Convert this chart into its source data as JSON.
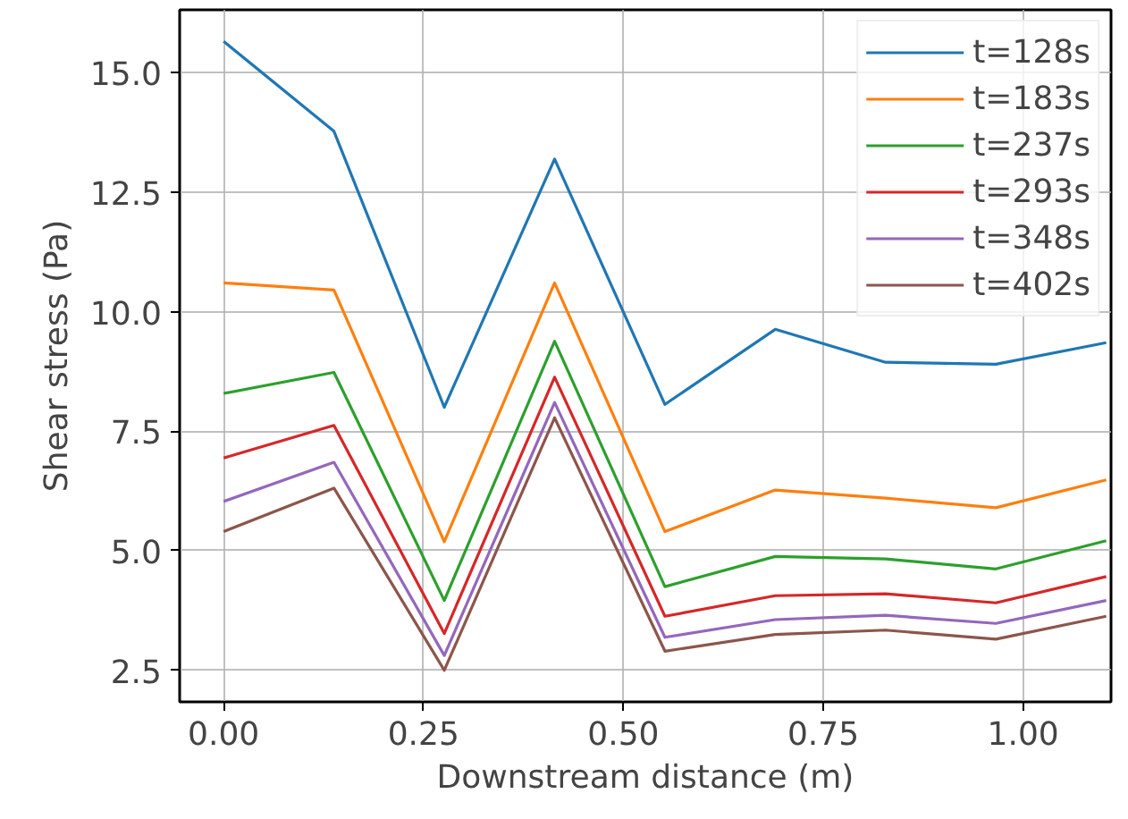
{
  "chart_data": {
    "type": "line",
    "xlabel": "Downstream distance (m)",
    "ylabel": "Shear stress (Pa)",
    "x": [
      0,
      0.138,
      0.276,
      0.414,
      0.552,
      0.69,
      0.828,
      0.966,
      1.104
    ],
    "series": [
      {
        "name": "t=128s",
        "color": "#1f77b4",
        "values": [
          15.65,
          13.77,
          8.0,
          13.19,
          8.06,
          9.63,
          8.94,
          8.9,
          9.35
        ]
      },
      {
        "name": "t=183s",
        "color": "#ff7f0e",
        "values": [
          10.6,
          10.45,
          5.19,
          10.6,
          5.4,
          6.27,
          6.1,
          5.9,
          6.48
        ]
      },
      {
        "name": "t=237s",
        "color": "#2ca02c",
        "values": [
          8.29,
          8.73,
          3.96,
          9.38,
          4.25,
          4.88,
          4.83,
          4.62,
          5.21
        ]
      },
      {
        "name": "t=293s",
        "color": "#d62728",
        "values": [
          6.94,
          7.62,
          3.27,
          8.63,
          3.63,
          4.06,
          4.1,
          3.91,
          4.46
        ]
      },
      {
        "name": "t=348s",
        "color": "#9467bd",
        "values": [
          6.03,
          6.85,
          2.81,
          8.1,
          3.19,
          3.56,
          3.65,
          3.48,
          3.96
        ]
      },
      {
        "name": "t=402s",
        "color": "#8c564b",
        "values": [
          5.4,
          6.31,
          2.5,
          7.78,
          2.9,
          3.25,
          3.34,
          3.15,
          3.63
        ]
      }
    ],
    "xlim": [
      -0.055,
      1.11
    ],
    "ylim": [
      1.84,
      16.31
    ],
    "xticks": [
      {
        "value": 0,
        "label": "0.00"
      },
      {
        "value": 0.25,
        "label": "0.25"
      },
      {
        "value": 0.5,
        "label": "0.50"
      },
      {
        "value": 0.75,
        "label": "0.75"
      },
      {
        "value": 1.0,
        "label": "1.00"
      }
    ],
    "yticks": [
      {
        "value": 2.5,
        "label": "2.5"
      },
      {
        "value": 5,
        "label": "5.0"
      },
      {
        "value": 7.5,
        "label": "7.5"
      },
      {
        "value": 10,
        "label": "10.0"
      },
      {
        "value": 12.5,
        "label": "12.5"
      },
      {
        "value": 15,
        "label": "15.0"
      }
    ],
    "grid": true,
    "legend": "top right",
    "line_style": "solid"
  }
}
